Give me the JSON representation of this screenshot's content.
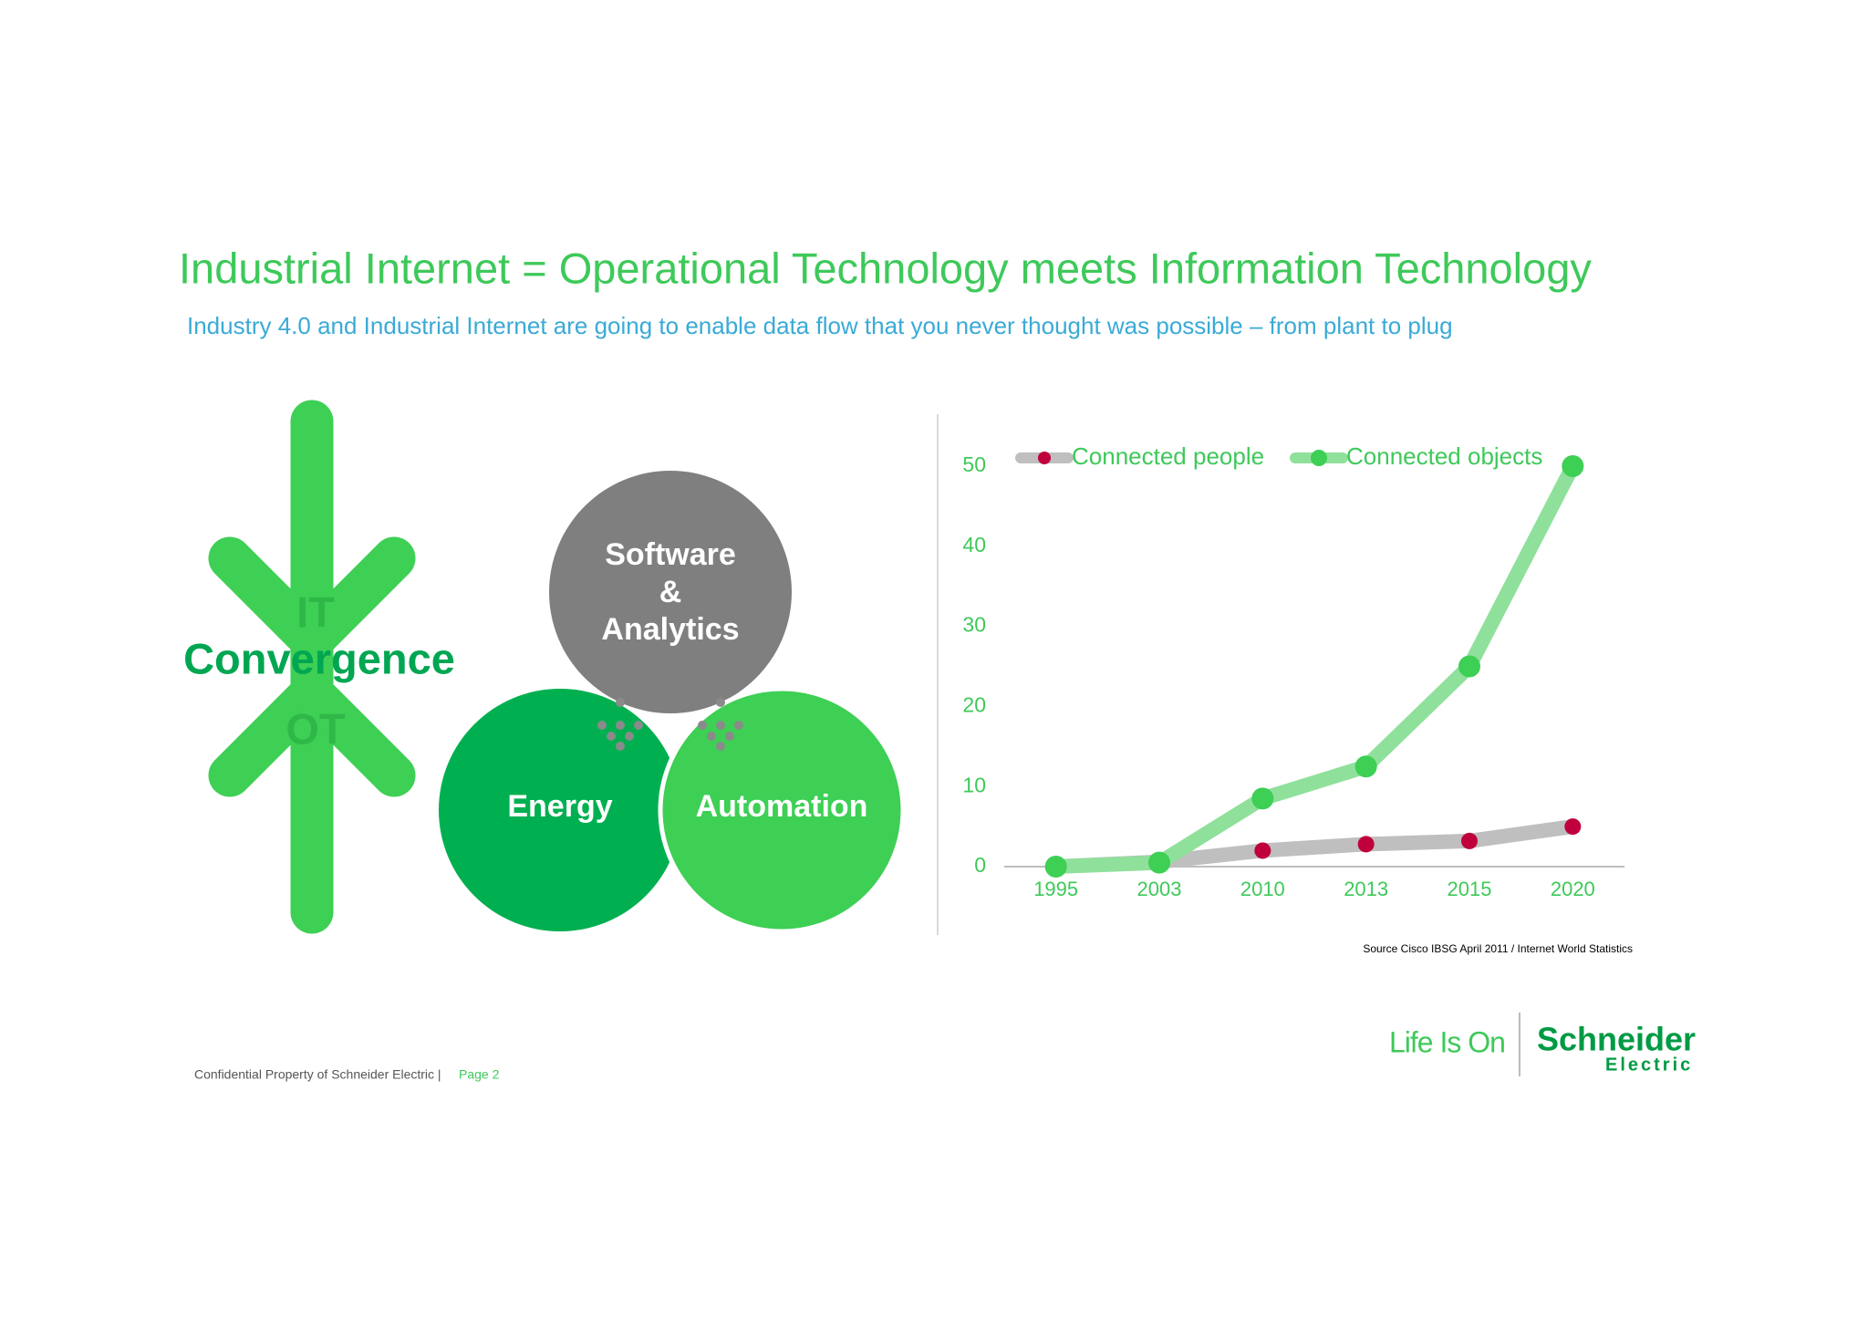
{
  "title": "Industrial Internet = Operational Technology meets Information Technology",
  "subtitle": "Industry 4.0 and Industrial Internet are going to enable data flow that you never thought was possible – from plant to plug",
  "convergence": {
    "label": "Convergence",
    "top": "IT",
    "bottom": "OT"
  },
  "circles": {
    "software": [
      "Software",
      "&",
      "Analytics"
    ],
    "energy": "Energy",
    "automation": "Automation"
  },
  "chart_data": {
    "type": "line",
    "categories": [
      "1995",
      "2003",
      "2010",
      "2013",
      "2015",
      "2020"
    ],
    "series": [
      {
        "name": "Connected people",
        "color": "#c0003c",
        "values": [
          0,
          0.6,
          2,
          2.8,
          3.2,
          5
        ]
      },
      {
        "name": "Connected objects",
        "color": "#3ecf55",
        "values": [
          0,
          0.5,
          8.5,
          12.5,
          25,
          50
        ]
      }
    ],
    "ylim": [
      0,
      50
    ],
    "yticks": [
      0,
      10,
      20,
      30,
      40,
      50
    ],
    "grid": false,
    "source": "Source Cisco IBSG April 2011 / Internet World Statistics"
  },
  "footer": {
    "confidential": "Confidential Property of Schneider Electric |",
    "page": "Page 2"
  },
  "logo": {
    "tagline": "Life Is On",
    "brand": "Schneider",
    "brand_sub": "Electric"
  }
}
